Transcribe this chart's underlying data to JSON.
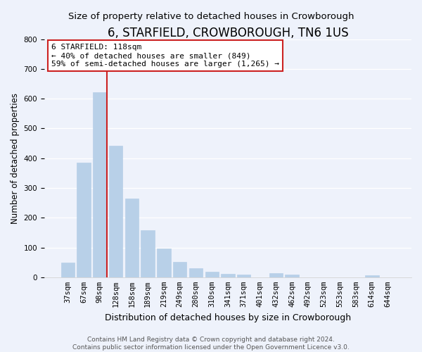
{
  "title": "6, STARFIELD, CROWBOROUGH, TN6 1US",
  "subtitle": "Size of property relative to detached houses in Crowborough",
  "xlabel": "Distribution of detached houses by size in Crowborough",
  "ylabel": "Number of detached properties",
  "bar_labels": [
    "37sqm",
    "67sqm",
    "98sqm",
    "128sqm",
    "158sqm",
    "189sqm",
    "219sqm",
    "249sqm",
    "280sqm",
    "310sqm",
    "341sqm",
    "371sqm",
    "401sqm",
    "432sqm",
    "462sqm",
    "492sqm",
    "523sqm",
    "553sqm",
    "583sqm",
    "614sqm",
    "644sqm"
  ],
  "bar_values": [
    50,
    385,
    622,
    443,
    265,
    157,
    97,
    52,
    31,
    18,
    11,
    10,
    0,
    13,
    10,
    0,
    0,
    0,
    0,
    7,
    0
  ],
  "bar_color": "#b8d0e8",
  "bar_edge_color": "#b8d0e8",
  "highlight_line_color": "#cc2222",
  "annotation_text": "6 STARFIELD: 118sqm\n← 40% of detached houses are smaller (849)\n59% of semi-detached houses are larger (1,265) →",
  "annotation_box_color": "#ffffff",
  "annotation_box_edge": "#cc2222",
  "ylim": [
    0,
    800
  ],
  "yticks": [
    0,
    100,
    200,
    300,
    400,
    500,
    600,
    700,
    800
  ],
  "bg_color": "#eef2fb",
  "plot_bg_color": "#eef2fb",
  "footer": "Contains HM Land Registry data © Crown copyright and database right 2024.\nContains public sector information licensed under the Open Government Licence v3.0.",
  "title_fontsize": 12,
  "subtitle_fontsize": 9.5,
  "xlabel_fontsize": 9,
  "ylabel_fontsize": 8.5,
  "tick_fontsize": 7.5,
  "annotation_fontsize": 8,
  "footer_fontsize": 6.5
}
